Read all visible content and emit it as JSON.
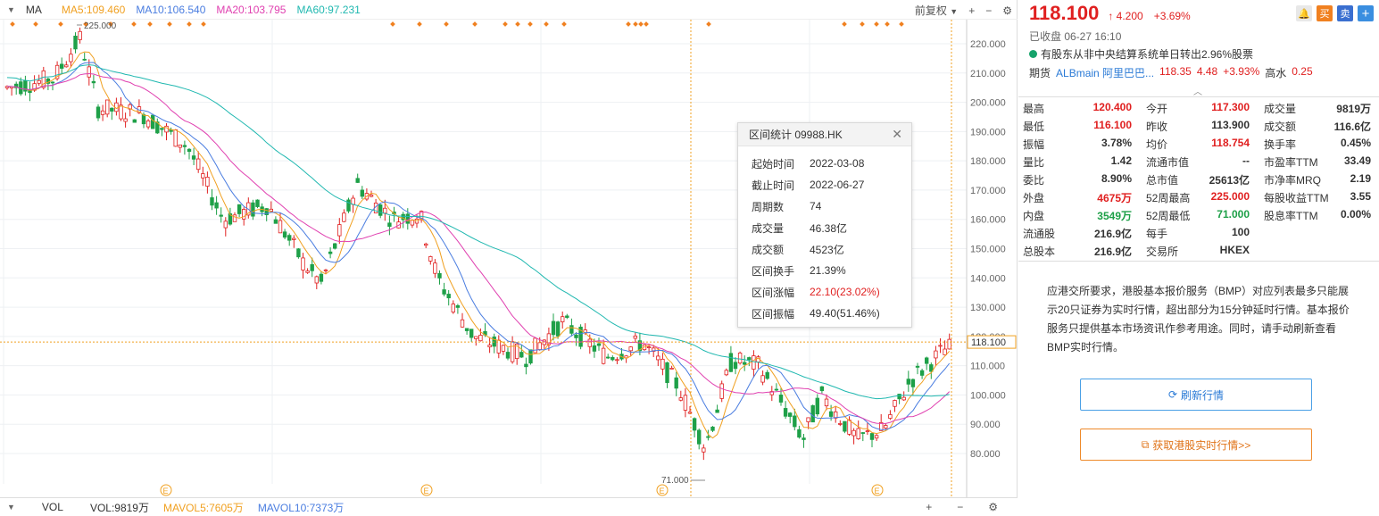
{
  "ma_bar": {
    "label": "MA",
    "ma5": "MA5:109.460",
    "ma10": "MA10:106.540",
    "ma20": "MA20:103.795",
    "ma60": "MA60:97.231",
    "adjust": "前复权",
    "colors": {
      "ma5": "#f0a020",
      "ma10": "#4a7de0",
      "ma20": "#e040b0",
      "ma60": "#20b8b0"
    }
  },
  "chart": {
    "price_axis": [
      "220.000",
      "210.000",
      "200.000",
      "190.000",
      "180.000",
      "170.000",
      "160.000",
      "150.000",
      "140.000",
      "130.000",
      "120.000",
      "110.000",
      "100.000",
      "90.000",
      "80.000"
    ],
    "high_label": "225.000",
    "low_label": "71.000",
    "current_price_tag": "118.100",
    "event_marker": "E"
  },
  "vol_bar": {
    "label": "VOL",
    "vol": "VOL:9819万",
    "mavol5": "MAVOL5:7605万",
    "mavol10": "MAVOL10:7373万"
  },
  "stats": {
    "title": "区间统计 09988.HK",
    "rows": [
      {
        "k": "起始时间",
        "v": "2022-03-08"
      },
      {
        "k": "截止时间",
        "v": "2022-06-27"
      },
      {
        "k": "周期数",
        "v": "74"
      },
      {
        "k": "成交量",
        "v": "46.38亿"
      },
      {
        "k": "成交额",
        "v": "4523亿"
      },
      {
        "k": "区间换手",
        "v": "21.39%"
      },
      {
        "k": "区间涨幅",
        "v": "22.10(23.02%)"
      },
      {
        "k": "区间振幅",
        "v": "49.40(51.46%)"
      }
    ]
  },
  "header": {
    "price": "118.100",
    "change": "4.200",
    "pct": "+3.69%",
    "icons": [
      "bell-icon",
      "buy",
      "sell",
      "add"
    ],
    "icon_labels": {
      "buy": "买",
      "sell": "卖",
      "add": "+"
    },
    "status": "已收盘 06-27 16:10",
    "notice": "有股东从非中央结算系统单日转出2.96%股票",
    "futures_label": "期货",
    "futures_name": "ALBmain 阿里巴巴...",
    "futures_price": "118.35",
    "futures_change": "4.48",
    "futures_pct": "+3.93%",
    "futures_k": "高水",
    "futures_v": "0.25"
  },
  "quote": [
    [
      {
        "k": "最高",
        "v": "120.400",
        "c": "red"
      },
      {
        "k": "今开",
        "v": "117.300",
        "c": "red"
      },
      {
        "k": "成交量",
        "v": "9819万",
        "c": ""
      }
    ],
    [
      {
        "k": "最低",
        "v": "116.100",
        "c": "red"
      },
      {
        "k": "昨收",
        "v": "113.900",
        "c": ""
      },
      {
        "k": "成交额",
        "v": "116.6亿",
        "c": ""
      }
    ],
    [
      {
        "k": "振幅",
        "v": "3.78%",
        "c": ""
      },
      {
        "k": "均价",
        "v": "118.754",
        "c": "red"
      },
      {
        "k": "换手率",
        "v": "0.45%",
        "c": ""
      }
    ],
    [
      {
        "k": "量比",
        "v": "1.42",
        "c": ""
      },
      {
        "k": "流通市值",
        "v": "--",
        "c": ""
      },
      {
        "k": "市盈率TTM",
        "v": "33.49",
        "c": ""
      }
    ],
    [
      {
        "k": "委比",
        "v": "8.90%",
        "c": ""
      },
      {
        "k": "总市值",
        "v": "25613亿",
        "c": ""
      },
      {
        "k": "市净率MRQ",
        "v": "2.19",
        "c": ""
      }
    ],
    [
      {
        "k": "外盘",
        "v": "4675万",
        "c": "red"
      },
      {
        "k": "52周最高",
        "v": "225.000",
        "c": "red"
      },
      {
        "k": "每股收益TTM",
        "v": "3.55",
        "c": ""
      }
    ],
    [
      {
        "k": "内盘",
        "v": "3549万",
        "c": "green"
      },
      {
        "k": "52周最低",
        "v": "71.000",
        "c": "green"
      },
      {
        "k": "股息率TTM",
        "v": "0.00%",
        "c": ""
      }
    ],
    [
      {
        "k": "流通股",
        "v": "216.9亿",
        "c": ""
      },
      {
        "k": "每手",
        "v": "100",
        "c": ""
      },
      {
        "k": "",
        "v": "",
        "c": ""
      }
    ],
    [
      {
        "k": "总股本",
        "v": "216.9亿",
        "c": ""
      },
      {
        "k": "交易所",
        "v": "HKEX",
        "c": ""
      },
      {
        "k": "",
        "v": "",
        "c": ""
      }
    ]
  ],
  "bmp_text": "应港交所要求，港股基本报价服务（BMP）对应列表最多只能展示20只证券为实时行情，超出部分为15分钟延时行情。基本报价服务只提供基本市场资讯作参考用途。同时，请手动刷新查看BMP实时行情。",
  "refresh_label": "刷新行情",
  "bmp_label": "获取港股实时行情>>"
}
